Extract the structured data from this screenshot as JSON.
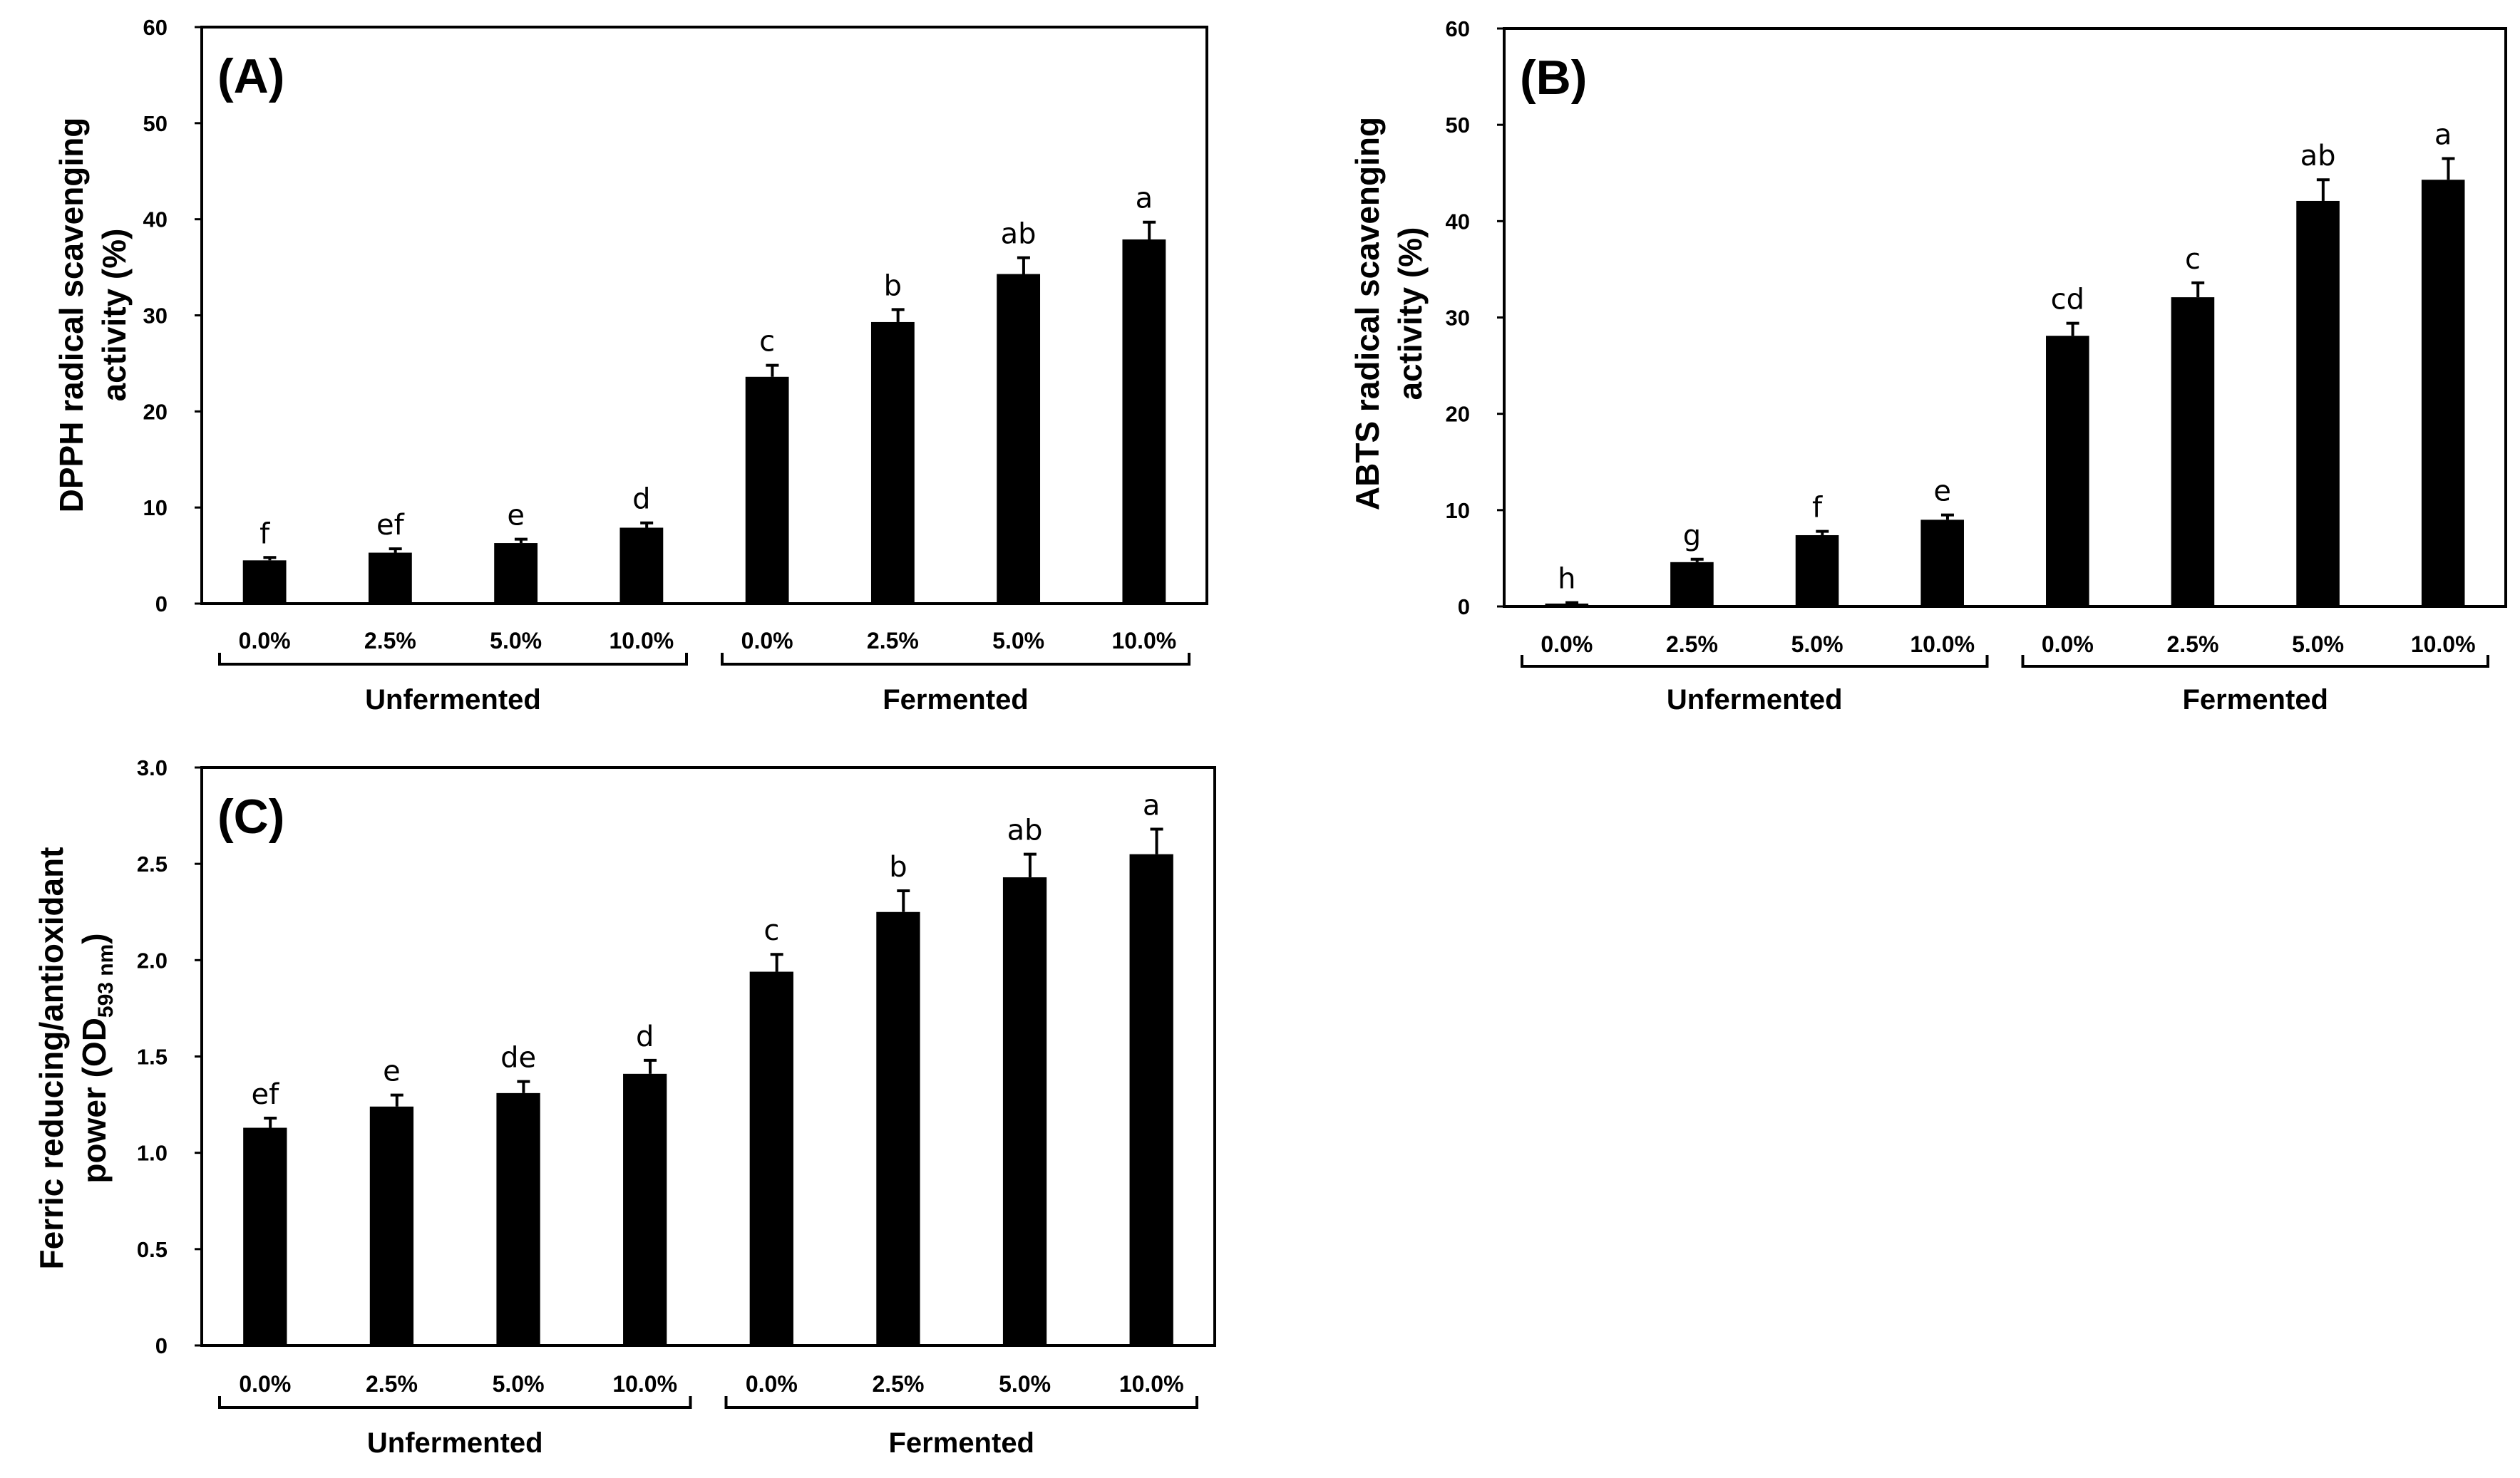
{
  "chart_data": [
    {
      "type": "bar",
      "panel_label": "(A)",
      "ylabel_lines": [
        "DPPH radical scavenging",
        "activity (%)"
      ],
      "ylim": [
        0,
        60
      ],
      "yticks": [
        "0",
        "10",
        "20",
        "30",
        "40",
        "50",
        "60"
      ],
      "categories": [
        "0.0%",
        "2.5%",
        "5.0%",
        "10.0%",
        "0.0%",
        "2.5%",
        "5.0%",
        "10.0%"
      ],
      "groups": [
        "Unfermented",
        "Fermented"
      ],
      "values": [
        4.5,
        5.3,
        6.3,
        7.9,
        23.6,
        29.3,
        34.3,
        37.9
      ],
      "errors": [
        0.3,
        0.4,
        0.4,
        0.5,
        1.2,
        1.3,
        1.7,
        1.8
      ],
      "significance": [
        "f",
        "ef",
        "e",
        "d",
        "c",
        "b",
        "ab",
        "a"
      ]
    },
    {
      "type": "bar",
      "panel_label": "(B)",
      "ylabel_lines": [
        "ABTS radical scavenging",
        "activity (%)"
      ],
      "ylim": [
        0,
        60
      ],
      "yticks": [
        "0",
        "10",
        "20",
        "30",
        "40",
        "50",
        "60"
      ],
      "categories": [
        "0.0%",
        "2.5%",
        "5.0%",
        "10.0%",
        "0.0%",
        "2.5%",
        "5.0%",
        "10.0%"
      ],
      "groups": [
        "Unfermented",
        "Fermented"
      ],
      "values": [
        0.3,
        4.6,
        7.4,
        9.0,
        28.1,
        32.1,
        42.1,
        44.3
      ],
      "errors": [
        0.1,
        0.3,
        0.4,
        0.5,
        1.3,
        1.5,
        2.2,
        2.2
      ],
      "significance": [
        "h",
        "g",
        "f",
        "e",
        "cd",
        "c",
        "ab",
        "a"
      ]
    },
    {
      "type": "bar",
      "panel_label": "(C)",
      "ylabel_lines": [
        "Ferric reducing/antioxidant",
        "power (OD"
      ],
      "ylabel_subscript": "593 nm",
      "ylabel_suffix": ")",
      "ylim": [
        0,
        3.0
      ],
      "yticks": [
        "0",
        "0.5",
        "1.0",
        "1.5",
        "2.0",
        "2.5",
        "3.0"
      ],
      "categories": [
        "0.0%",
        "2.5%",
        "5.0%",
        "10.0%",
        "0.0%",
        "2.5%",
        "5.0%",
        "10.0%"
      ],
      "groups": [
        "Unfermented",
        "Fermented"
      ],
      "values": [
        1.13,
        1.24,
        1.31,
        1.41,
        1.94,
        2.25,
        2.43,
        2.55
      ],
      "errors": [
        0.05,
        0.06,
        0.06,
        0.07,
        0.09,
        0.11,
        0.12,
        0.13
      ],
      "significance": [
        "ef",
        "e",
        "de",
        "d",
        "c",
        "b",
        "ab",
        "a"
      ]
    }
  ]
}
